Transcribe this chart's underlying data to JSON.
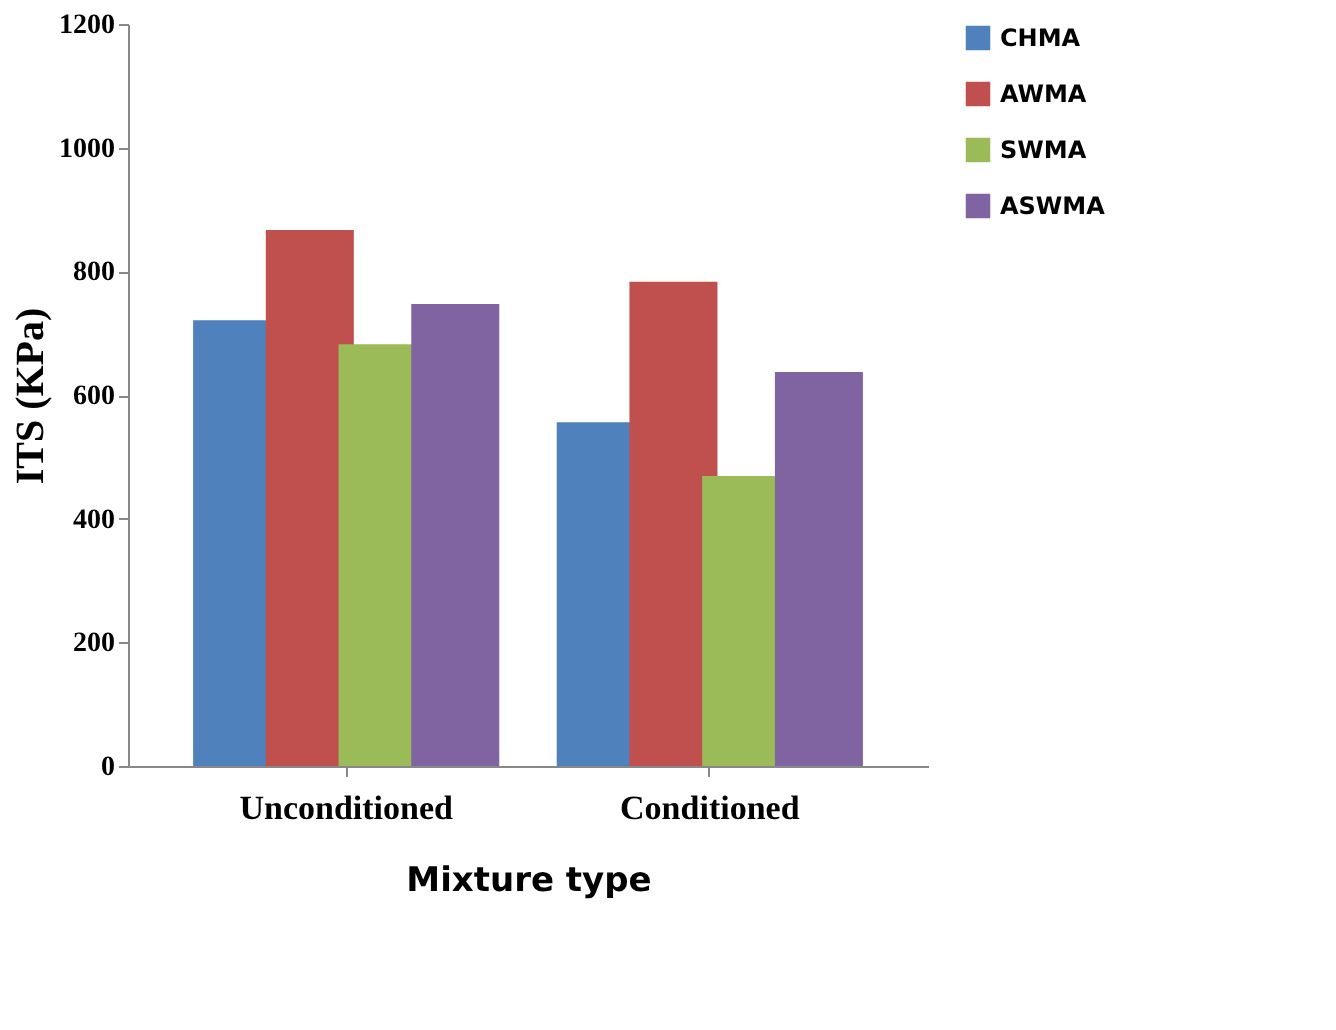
{
  "chart_data": {
    "type": "bar",
    "xlabel": "Mixture type",
    "ylabel": "ITS (KPa)",
    "categories": [
      "Unconditioned",
      "Conditioned"
    ],
    "series": [
      {
        "name": "CHMA",
        "color": "#4f81bd",
        "values": [
          721,
          556
        ]
      },
      {
        "name": "AWMA",
        "color": "#c0504d",
        "values": [
          867,
          783
        ]
      },
      {
        "name": "SWMA",
        "color": "#9bbb59",
        "values": [
          682,
          469
        ]
      },
      {
        "name": "ASWMA",
        "color": "#8064a2",
        "values": [
          747,
          637
        ]
      }
    ],
    "ylim": [
      0,
      1200
    ],
    "yticks": [
      0,
      200,
      400,
      600,
      800,
      1000,
      1200
    ],
    "grid": false,
    "legend": "right"
  }
}
